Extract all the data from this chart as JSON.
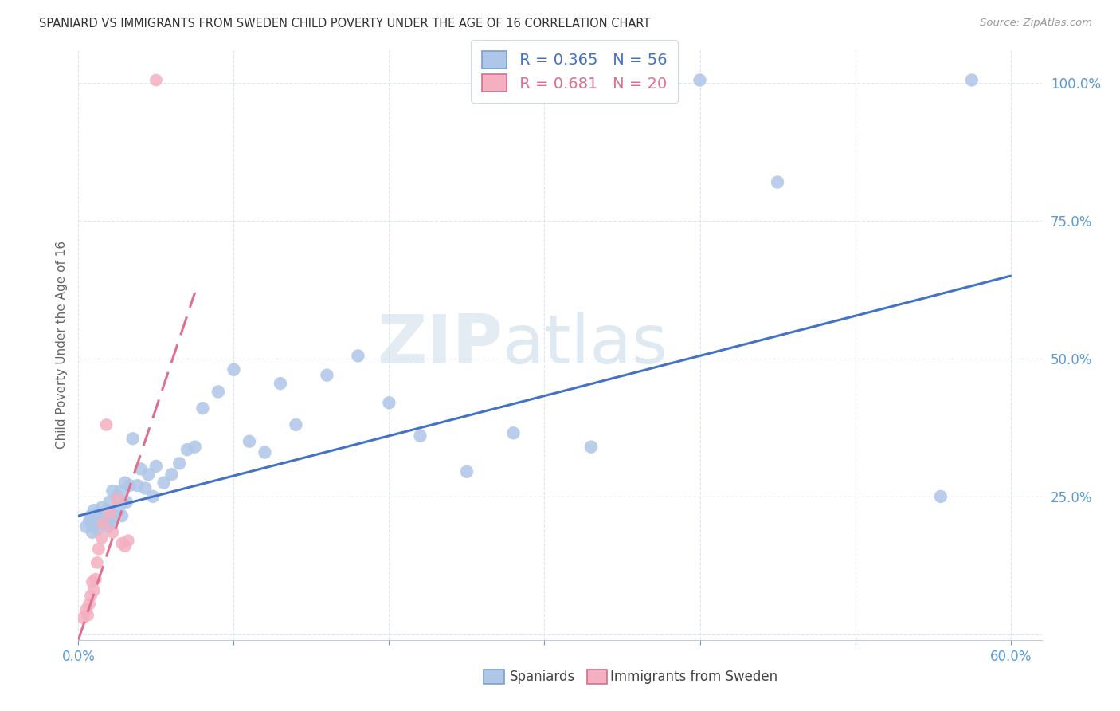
{
  "title": "SPANIARD VS IMMIGRANTS FROM SWEDEN CHILD POVERTY UNDER THE AGE OF 16 CORRELATION CHART",
  "source": "Source: ZipAtlas.com",
  "ylabel": "Child Poverty Under the Age of 16",
  "xlim": [
    0.0,
    0.62
  ],
  "ylim": [
    -0.01,
    1.06
  ],
  "blue_R": 0.365,
  "blue_N": 56,
  "pink_R": 0.681,
  "pink_N": 20,
  "legend_label_blue": "Spaniards",
  "legend_label_pink": "Immigrants from Sweden",
  "blue_color": "#aec6e8",
  "blue_line_color": "#4472c4",
  "pink_color": "#f4b0c0",
  "pink_line_color": "#e07090",
  "watermark_zip": "ZIP",
  "watermark_atlas": "atlas",
  "title_fontsize": 10.5,
  "axis_tick_color": "#5b9bd5",
  "grid_color": "#dce6f0",
  "background_color": "#ffffff",
  "blue_scatter_x": [
    0.005,
    0.007,
    0.008,
    0.009,
    0.01,
    0.01,
    0.011,
    0.012,
    0.013,
    0.015,
    0.016,
    0.017,
    0.018,
    0.019,
    0.02,
    0.02,
    0.021,
    0.022,
    0.023,
    0.025,
    0.026,
    0.027,
    0.028,
    0.03,
    0.031,
    0.033,
    0.035,
    0.038,
    0.04,
    0.043,
    0.045,
    0.048,
    0.05,
    0.055,
    0.06,
    0.065,
    0.07,
    0.075,
    0.08,
    0.09,
    0.1,
    0.11,
    0.12,
    0.13,
    0.14,
    0.16,
    0.18,
    0.2,
    0.22,
    0.25,
    0.28,
    0.33,
    0.4,
    0.45,
    0.555,
    0.575
  ],
  "blue_scatter_y": [
    0.195,
    0.205,
    0.215,
    0.185,
    0.21,
    0.225,
    0.2,
    0.19,
    0.22,
    0.23,
    0.215,
    0.205,
    0.225,
    0.195,
    0.24,
    0.21,
    0.2,
    0.26,
    0.215,
    0.25,
    0.23,
    0.26,
    0.215,
    0.275,
    0.24,
    0.27,
    0.355,
    0.27,
    0.3,
    0.265,
    0.29,
    0.25,
    0.305,
    0.275,
    0.29,
    0.31,
    0.335,
    0.34,
    0.41,
    0.44,
    0.48,
    0.35,
    0.33,
    0.455,
    0.38,
    0.47,
    0.505,
    0.42,
    0.36,
    0.295,
    0.365,
    0.34,
    1.005,
    0.82,
    0.25,
    1.005
  ],
  "pink_scatter_x": [
    0.003,
    0.005,
    0.006,
    0.007,
    0.008,
    0.009,
    0.01,
    0.011,
    0.012,
    0.013,
    0.015,
    0.016,
    0.018,
    0.02,
    0.022,
    0.025,
    0.028,
    0.03,
    0.032,
    0.05
  ],
  "pink_scatter_y": [
    0.03,
    0.045,
    0.035,
    0.055,
    0.07,
    0.095,
    0.08,
    0.1,
    0.13,
    0.155,
    0.175,
    0.2,
    0.38,
    0.22,
    0.185,
    0.245,
    0.165,
    0.16,
    0.17,
    1.005
  ],
  "blue_line_x0": 0.0,
  "blue_line_y0": 0.215,
  "blue_line_x1": 0.6,
  "blue_line_y1": 0.65,
  "pink_line_x0": 0.0,
  "pink_line_y0": -0.01,
  "pink_line_x1": 0.075,
  "pink_line_y1": 0.62
}
